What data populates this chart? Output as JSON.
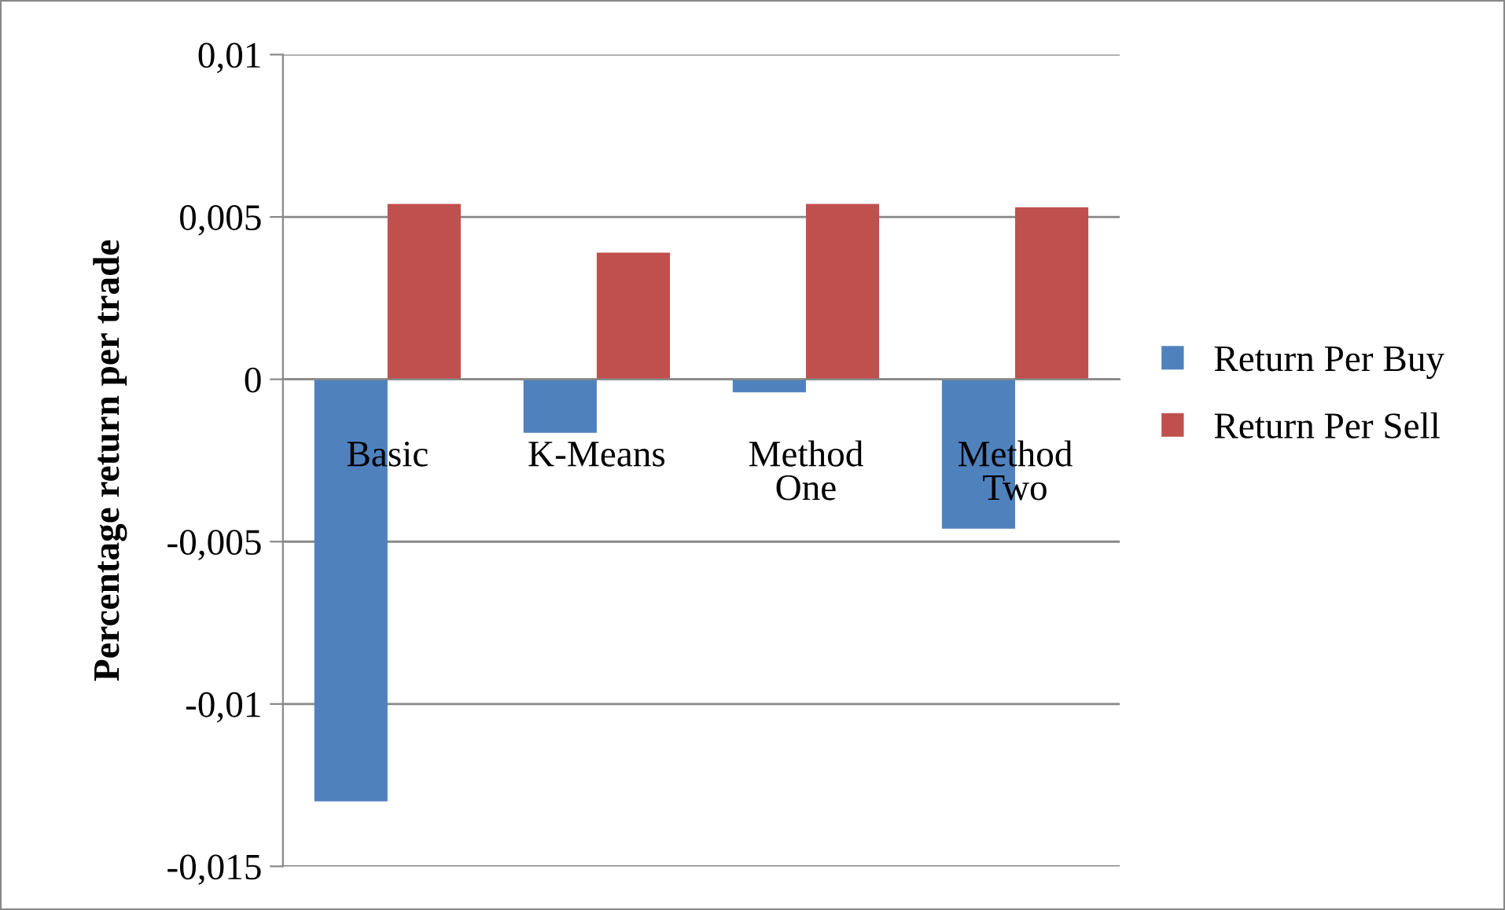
{
  "chart_data": {
    "type": "bar",
    "ylabel": "Percentage return per trade",
    "categories": [
      "Basic",
      "K-Means",
      "Method One",
      "Method Two"
    ],
    "series": [
      {
        "name": "Return Per Buy",
        "color": "#4f81bd",
        "values": [
          -0.013,
          -0.00165,
          -0.0004,
          -0.0046
        ]
      },
      {
        "name": "Return Per Sell",
        "color": "#c0504d",
        "values": [
          0.0054,
          0.0039,
          0.0054,
          0.0053
        ]
      }
    ],
    "ylim": [
      -0.015,
      0.01
    ],
    "yticks": [
      {
        "value": -0.015,
        "label": "-0,015"
      },
      {
        "value": -0.01,
        "label": "-0,01"
      },
      {
        "value": -0.005,
        "label": "-0,005"
      },
      0,
      {
        "value": 0.005,
        "label": "0,005"
      },
      {
        "value": 0.01,
        "label": "0,01"
      }
    ],
    "grid": "y",
    "legend": "right"
  }
}
